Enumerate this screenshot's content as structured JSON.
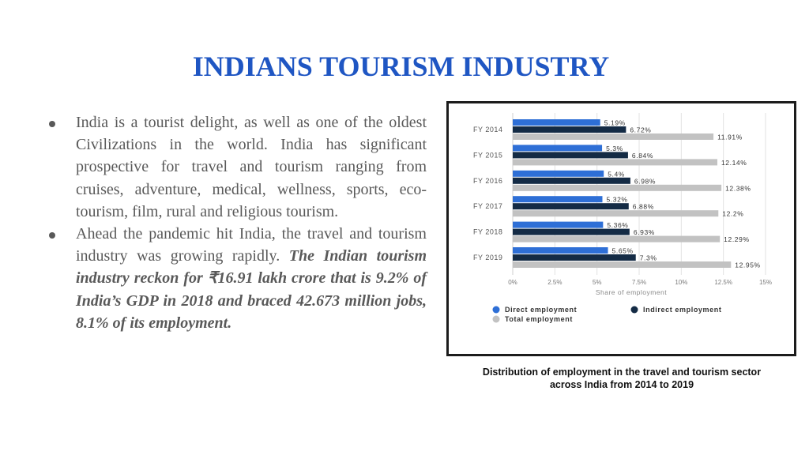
{
  "slide": {
    "title": "INDIANS TOURISM INDUSTRY",
    "bullets": [
      {
        "text": "India is a tourist delight, as well as one of the oldest Civilizations in the world. India has significant prospective for travel and tourism ranging from cruises, adventure, medical, wellness, sports, eco-tourism, film, rural and religious tourism.",
        "emphasis": ""
      },
      {
        "text": "Ahead the pandemic hit India, the travel and tourism industry was growing rapidly. ",
        "emphasis": "The Indian tourism industry reckon for ₹16.91 lakh crore that is 9.2% of India’s GDP in 2018 and braced 42.673 million jobs, 8.1% of its employment."
      }
    ],
    "caption": "Distribution of employment in the travel and tourism sector across India from 2014 to 2019"
  },
  "colors": {
    "title": "#1f56c3",
    "body_text": "#595959",
    "direct": "#2e6fd6",
    "indirect": "#142b45",
    "total": "#c2c2c2"
  },
  "chart_data": {
    "type": "bar",
    "orientation": "horizontal",
    "categories": [
      "FY 2014",
      "FY 2015",
      "FY 2016",
      "FY 2017",
      "FY 2018",
      "FY 2019"
    ],
    "series": [
      {
        "name": "Direct employment",
        "values": [
          5.19,
          5.3,
          5.4,
          5.32,
          5.36,
          5.65
        ],
        "labels": [
          "5.19%",
          "5.3%",
          "5.4%",
          "5.32%",
          "5.36%",
          "5.65%"
        ]
      },
      {
        "name": "Indirect employment",
        "values": [
          6.72,
          6.84,
          6.98,
          6.88,
          6.93,
          7.3
        ],
        "labels": [
          "6.72%",
          "6.84%",
          "6.98%",
          "6.88%",
          "6.93%",
          "7.3%"
        ]
      },
      {
        "name": "Total employment",
        "values": [
          11.91,
          12.14,
          12.38,
          12.2,
          12.29,
          12.95
        ],
        "labels": [
          "11.91%",
          "12.14%",
          "12.38%",
          "12.2%",
          "12.29%",
          "12.95%"
        ]
      }
    ],
    "xlabel": "Share of employment",
    "ylabel": "",
    "xlim": [
      0,
      15
    ],
    "xticks": [
      0,
      2.5,
      5,
      7.5,
      10,
      12.5,
      15
    ],
    "xtick_labels": [
      "0%",
      "2.5%",
      "5%",
      "7.5%",
      "10%",
      "12.5%",
      "15%"
    ],
    "grid": true,
    "legend_position": "bottom"
  }
}
